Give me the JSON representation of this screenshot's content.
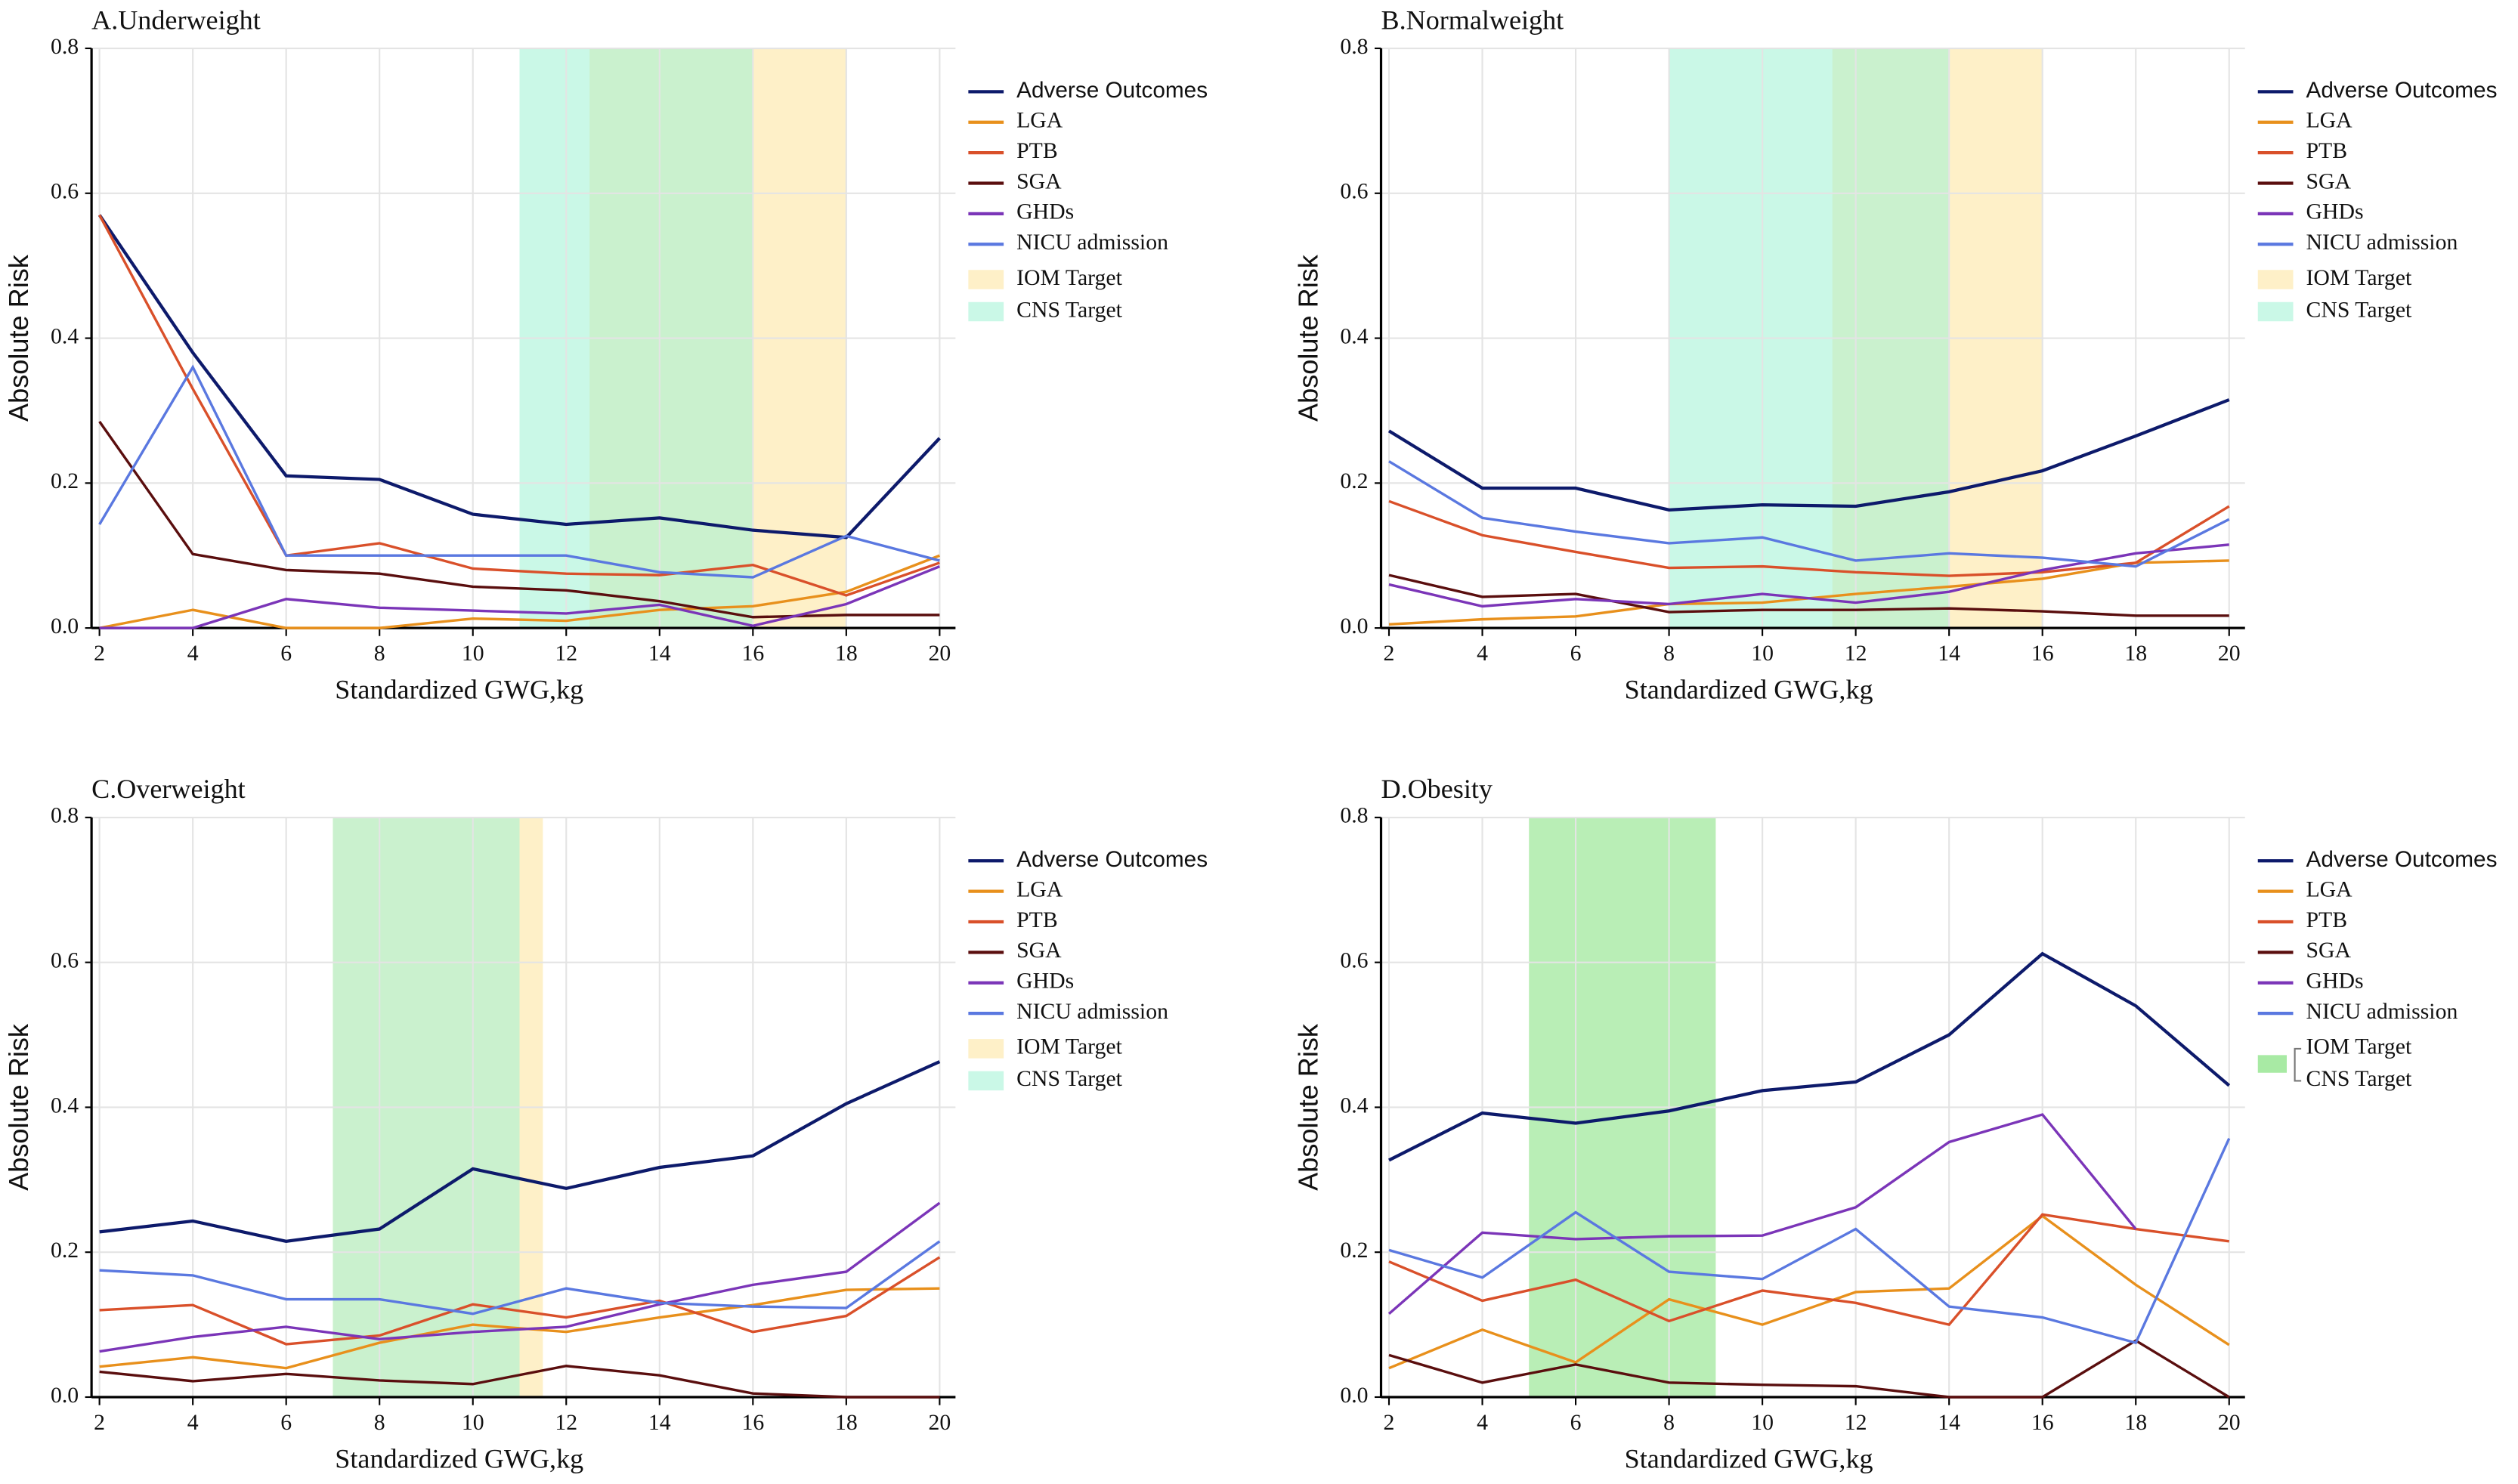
{
  "chart_data": [
    {
      "type": "line",
      "title": "A.Underweight",
      "xlabel": "Standardized GWG,kg",
      "ylabel": "Absolute Risk",
      "x": [
        2,
        4,
        6,
        8,
        10,
        12,
        14,
        16,
        18,
        20
      ],
      "xlim": [
        1.83,
        20.34
      ],
      "xticks": [
        2,
        4,
        6,
        8,
        10,
        12,
        14,
        16,
        18,
        20
      ],
      "ylim": [
        0,
        0.8
      ],
      "yticks": [
        {
          "value": 0,
          "label": "0.0"
        },
        0.2,
        0.4,
        0.6,
        0.8
      ],
      "grid": true,
      "series": [
        {
          "name": "Adverse Outcomes",
          "color": "#0d1a6b",
          "values": [
            0.57,
            0.38,
            0.21,
            0.205,
            0.157,
            0.143,
            0.152,
            0.135,
            0.125,
            0.262
          ]
        },
        {
          "name": "LGA",
          "color": "#e8901c",
          "values": [
            0,
            0.025,
            0,
            0,
            0.013,
            0.01,
            0.025,
            0.03,
            0.05,
            0.1
          ]
        },
        {
          "name": "PTB",
          "color": "#d9502a",
          "values": [
            0.57,
            0.33,
            0.1,
            0.117,
            0.082,
            0.075,
            0.073,
            0.087,
            0.045,
            0.09
          ]
        },
        {
          "name": "SGA",
          "color": "#5a0e0e",
          "values": [
            0.285,
            0.102,
            0.08,
            0.075,
            0.057,
            0.052,
            0.037,
            0.015,
            0.018,
            0.018
          ]
        },
        {
          "name": "GHDs",
          "color": "#7b35b8",
          "values": [
            0,
            0,
            0.04,
            0.028,
            0.024,
            0.02,
            0.032,
            0.003,
            0.033,
            0.085
          ]
        },
        {
          "name": "NICU admission",
          "color": "#5a78e0",
          "values": [
            0.143,
            0.36,
            0.1,
            0.1,
            0.1,
            0.1,
            0.077,
            0.07,
            0.127,
            0.093
          ]
        }
      ],
      "bands": [
        {
          "name": "IOM Target",
          "color": "#fde39a",
          "range": [
            12.5,
            18
          ]
        },
        {
          "name": "CNS Target",
          "color": "#9ff2d4",
          "range": [
            11,
            16
          ]
        }
      ]
    },
    {
      "type": "line",
      "title": "B.Normalweight",
      "xlabel": "Standardized GWG,kg",
      "ylabel": "Absolute Risk",
      "x": [
        2,
        4,
        6,
        8,
        10,
        12,
        14,
        16,
        18,
        20
      ],
      "xlim": [
        1.83,
        20.34
      ],
      "xticks": [
        2,
        4,
        6,
        8,
        10,
        12,
        14,
        16,
        18,
        20
      ],
      "ylim": [
        0,
        0.8
      ],
      "yticks": [
        {
          "value": 0,
          "label": "0.0"
        },
        0.2,
        0.4,
        0.6,
        0.8
      ],
      "grid": true,
      "series": [
        {
          "name": "Adverse Outcomes",
          "color": "#0d1a6b",
          "values": [
            0.272,
            0.193,
            0.193,
            0.163,
            0.17,
            0.168,
            0.188,
            0.217,
            0.265,
            0.315
          ]
        },
        {
          "name": "LGA",
          "color": "#e8901c",
          "values": [
            0.005,
            0.012,
            0.016,
            0.033,
            0.035,
            0.047,
            0.057,
            0.068,
            0.09,
            0.093
          ]
        },
        {
          "name": "PTB",
          "color": "#d9502a",
          "values": [
            0.175,
            0.128,
            0.105,
            0.083,
            0.085,
            0.077,
            0.072,
            0.077,
            0.09,
            0.168
          ]
        },
        {
          "name": "SGA",
          "color": "#5a0e0e",
          "values": [
            0.073,
            0.043,
            0.047,
            0.022,
            0.025,
            0.025,
            0.027,
            0.023,
            0.017,
            0.017
          ]
        },
        {
          "name": "GHDs",
          "color": "#7b35b8",
          "values": [
            0.06,
            0.03,
            0.04,
            0.033,
            0.047,
            0.035,
            0.05,
            0.08,
            0.103,
            0.115
          ]
        },
        {
          "name": "NICU admission",
          "color": "#5a78e0",
          "values": [
            0.23,
            0.152,
            0.133,
            0.117,
            0.125,
            0.093,
            0.103,
            0.097,
            0.085,
            0.15
          ]
        }
      ],
      "bands": [
        {
          "name": "IOM Target",
          "color": "#fde39a",
          "range": [
            11.5,
            16
          ]
        },
        {
          "name": "CNS Target",
          "color": "#9ff2d4",
          "range": [
            8,
            14
          ]
        }
      ]
    },
    {
      "type": "line",
      "title": "C.Overweight",
      "xlabel": "Standardized GWG,kg",
      "ylabel": "Absolute Risk",
      "x": [
        2,
        4,
        6,
        8,
        10,
        12,
        14,
        16,
        18,
        20
      ],
      "xlim": [
        1.83,
        20.34
      ],
      "xticks": [
        2,
        4,
        6,
        8,
        10,
        12,
        14,
        16,
        18,
        20
      ],
      "ylim": [
        0,
        0.8
      ],
      "yticks": [
        {
          "value": 0,
          "label": "0.0"
        },
        0.2,
        0.4,
        0.6,
        0.8
      ],
      "grid": true,
      "series": [
        {
          "name": "Adverse Outcomes",
          "color": "#0d1a6b",
          "values": [
            0.228,
            0.243,
            0.215,
            0.232,
            0.315,
            0.288,
            0.317,
            0.333,
            0.405,
            0.463
          ]
        },
        {
          "name": "LGA",
          "color": "#e8901c",
          "values": [
            0.042,
            0.055,
            0.04,
            0.075,
            0.1,
            0.09,
            0.11,
            0.127,
            0.148,
            0.15
          ]
        },
        {
          "name": "PTB",
          "color": "#d9502a",
          "values": [
            0.12,
            0.127,
            0.073,
            0.085,
            0.128,
            0.11,
            0.133,
            0.09,
            0.112,
            0.193
          ]
        },
        {
          "name": "SGA",
          "color": "#5a0e0e",
          "values": [
            0.035,
            0.022,
            0.032,
            0.023,
            0.018,
            0.043,
            0.03,
            0.005,
            0,
            0
          ]
        },
        {
          "name": "GHDs",
          "color": "#7b35b8",
          "values": [
            0.063,
            0.083,
            0.097,
            0.08,
            0.09,
            0.097,
            0.128,
            0.155,
            0.173,
            0.268
          ]
        },
        {
          "name": "NICU admission",
          "color": "#5a78e0",
          "values": [
            0.175,
            0.168,
            0.135,
            0.135,
            0.115,
            0.15,
            0.13,
            0.125,
            0.123,
            0.215
          ]
        }
      ],
      "bands": [
        {
          "name": "IOM Target",
          "color": "#fde39a",
          "range": [
            7,
            11.5
          ]
        },
        {
          "name": "CNS Target",
          "color": "#9ff2d4",
          "range": [
            7,
            11
          ]
        }
      ]
    },
    {
      "type": "line",
      "title": "D.Obesity",
      "xlabel": "Standardized GWG,kg",
      "ylabel": "Absolute Risk",
      "x": [
        2,
        4,
        6,
        8,
        10,
        12,
        14,
        16,
        18,
        20
      ],
      "xlim": [
        1.83,
        20.34
      ],
      "xticks": [
        2,
        4,
        6,
        8,
        10,
        12,
        14,
        16,
        18,
        20
      ],
      "ylim": [
        0,
        0.8
      ],
      "yticks": [
        {
          "value": 0,
          "label": "0.0"
        },
        0.2,
        0.4,
        0.6,
        0.8
      ],
      "grid": true,
      "series": [
        {
          "name": "Adverse Outcomes",
          "color": "#0d1a6b",
          "values": [
            0.327,
            0.392,
            0.378,
            0.395,
            0.423,
            0.435,
            0.5,
            0.612,
            0.54,
            0.43
          ]
        },
        {
          "name": "LGA",
          "color": "#e8901c",
          "values": [
            0.04,
            0.093,
            0.048,
            0.135,
            0.1,
            0.145,
            0.15,
            0.25,
            0.155,
            0.072
          ]
        },
        {
          "name": "PTB",
          "color": "#d9502a",
          "values": [
            0.187,
            0.133,
            0.162,
            0.105,
            0.147,
            0.13,
            0.1,
            0.252,
            0.232,
            0.215
          ]
        },
        {
          "name": "SGA",
          "color": "#5a0e0e",
          "values": [
            0.058,
            0.02,
            0.045,
            0.02,
            0.017,
            0.015,
            0,
            0,
            0.078,
            0
          ]
        },
        {
          "name": "GHDs",
          "color": "#7b35b8",
          "values": [
            0.115,
            0.227,
            0.218,
            0.222,
            0.223,
            0.262,
            0.352,
            0.39,
            0.232,
            null
          ]
        },
        {
          "name": "NICU admission",
          "color": "#5a78e0",
          "values": [
            0.203,
            0.165,
            0.255,
            0.173,
            0.163,
            0.232,
            0.125,
            0.11,
            0.075,
            0.357
          ]
        }
      ],
      "bands": [
        {
          "name": "IOM Target",
          "color": "#a8eaa4",
          "range": [
            5,
            9
          ]
        },
        {
          "name": "CNS Target",
          "color": "#a8eaa4",
          "range": [
            5,
            9
          ]
        }
      ]
    }
  ]
}
